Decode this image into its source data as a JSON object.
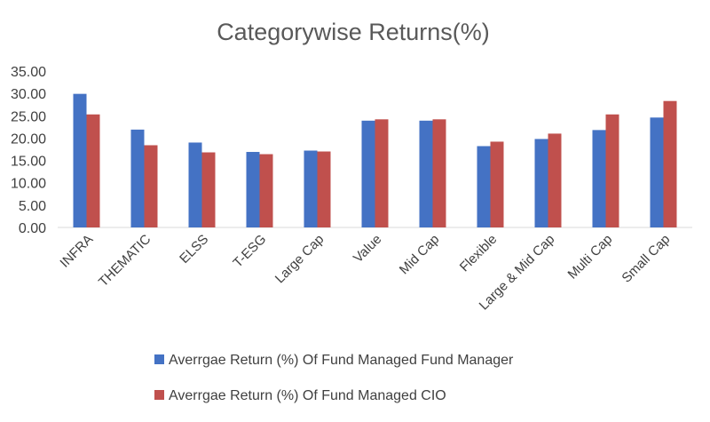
{
  "chart_data": {
    "type": "bar",
    "title": "Categorywise Returns(%)",
    "categories": [
      "INFRA",
      "THEMATIC",
      "ELSS",
      "T-ESG",
      "Large Cap",
      "Value",
      "Mid Cap",
      "Flexible",
      "Large & Mid Cap",
      "Multi Cap",
      "Small Cap"
    ],
    "series": [
      {
        "name": "Averrgae Return (%) Of Fund Managed Fund Manager",
        "color": "#4472C4",
        "values": [
          29.9,
          21.9,
          19.0,
          16.9,
          17.2,
          23.9,
          23.9,
          18.2,
          19.8,
          21.8,
          24.6
        ]
      },
      {
        "name": "Averrgae Return (%) Of Fund Managed CIO",
        "color": "#C0504D",
        "values": [
          25.3,
          18.4,
          16.8,
          16.4,
          17.0,
          24.2,
          24.2,
          19.2,
          21.0,
          25.3,
          28.3
        ]
      }
    ],
    "ylim": [
      0,
      35
    ],
    "yticks": [
      "0.00",
      "5.00",
      "10.00",
      "15.00",
      "20.00",
      "25.00",
      "30.00",
      "35.00"
    ],
    "xlabel": "",
    "ylabel": "",
    "grid": false,
    "legend_position": "bottom"
  }
}
